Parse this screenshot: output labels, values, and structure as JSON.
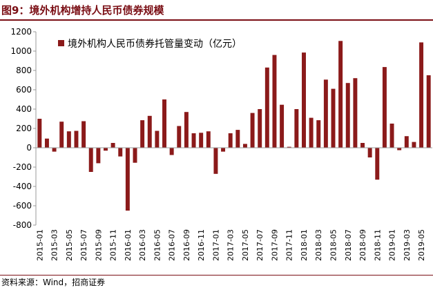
{
  "figure": {
    "title": "图9：境外机构增持人民币债券规模",
    "source": "资料来源：Wind，招商证券"
  },
  "colors": {
    "bar": "#8b1a1a",
    "title": "#7a0e14",
    "axis": "#999999"
  },
  "chart_data": {
    "type": "bar",
    "legend_position": "top-left",
    "grid": false,
    "ylim": [
      -800,
      1200
    ],
    "yticks": [
      -800,
      -600,
      -400,
      -200,
      0,
      200,
      400,
      600,
      800,
      1000,
      1200
    ],
    "series": [
      {
        "name": "境外机构人民币债券托管量变动（亿元）",
        "values": [
          300,
          95,
          -40,
          270,
          170,
          175,
          275,
          -250,
          -160,
          -30,
          50,
          -90,
          -650,
          -155,
          285,
          330,
          175,
          500,
          -75,
          225,
          370,
          150,
          155,
          170,
          -270,
          -40,
          150,
          185,
          40,
          360,
          400,
          830,
          960,
          445,
          10,
          400,
          985,
          310,
          285,
          705,
          610,
          1105,
          670,
          720,
          50,
          -100,
          -330,
          835,
          250,
          -25,
          120,
          60,
          1090,
          750
        ]
      }
    ],
    "categories": [
      "2015-01",
      "2015-02",
      "2015-03",
      "2015-04",
      "2015-05",
      "2015-06",
      "2015-07",
      "2015-08",
      "2015-09",
      "2015-10",
      "2015-11",
      "2015-12",
      "2016-01",
      "2016-02",
      "2016-03",
      "2016-04",
      "2016-05",
      "2016-06",
      "2016-07",
      "2016-08",
      "2016-09",
      "2016-10",
      "2016-11",
      "2016-12",
      "2017-01",
      "2017-02",
      "2017-03",
      "2017-04",
      "2017-05",
      "2017-06",
      "2017-07",
      "2017-08",
      "2017-09",
      "2017-10",
      "2017-11",
      "2017-12",
      "2018-01",
      "2018-02",
      "2018-03",
      "2018-04",
      "2018-05",
      "2018-06",
      "2018-07",
      "2018-08",
      "2018-09",
      "2018-10",
      "2018-11",
      "2018-12",
      "2019-01",
      "2019-02",
      "2019-03",
      "2019-04",
      "2019-05",
      "2019-06"
    ],
    "xtick_labels": [
      "2015-01",
      "2015-03",
      "2015-05",
      "2015-07",
      "2015-09",
      "2015-11",
      "2016-01",
      "2016-03",
      "2016-05",
      "2016-07",
      "2016-09",
      "2016-11",
      "2017-01",
      "2017-03",
      "2017-05",
      "2017-07",
      "2017-09",
      "2017-11",
      "2018-01",
      "2018-03",
      "2018-05",
      "2018-07",
      "2018-09",
      "2018-11",
      "2019-01",
      "2019-03",
      "2019-05"
    ]
  }
}
